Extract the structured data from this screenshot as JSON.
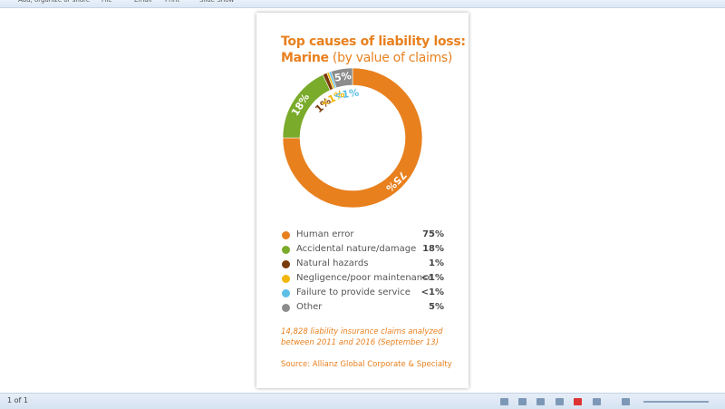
{
  "toolbar": {
    "items": [
      "Add, organize or share",
      "File",
      "Email",
      "Print",
      "Slide Show"
    ]
  },
  "status": {
    "page": "1 of 1"
  },
  "chart_data": {
    "type": "donut",
    "title": "Top causes of liability loss:",
    "subtitle": "Marine",
    "subtitle_note": "(by value of claims)",
    "categories": [
      "Human error",
      "Accidental nature/damage",
      "Natural hazards",
      "Negligence/poor maintenance",
      "Failure to provide service",
      "Other"
    ],
    "values": [
      75,
      18,
      1,
      0.5,
      0.5,
      5
    ],
    "value_labels": [
      "75%",
      "18%",
      "1%",
      "<1%",
      "<1%",
      "5%"
    ],
    "colors": [
      "#e8801e",
      "#7aab2a",
      "#7a3b0a",
      "#f2b705",
      "#5cbfe6",
      "#8c8c8c"
    ],
    "note": "14,828 liability insurance claims analyzed between 2011 and 2016 (September 13)",
    "source": "Source: Allianz Global Corporate & Specialty"
  }
}
